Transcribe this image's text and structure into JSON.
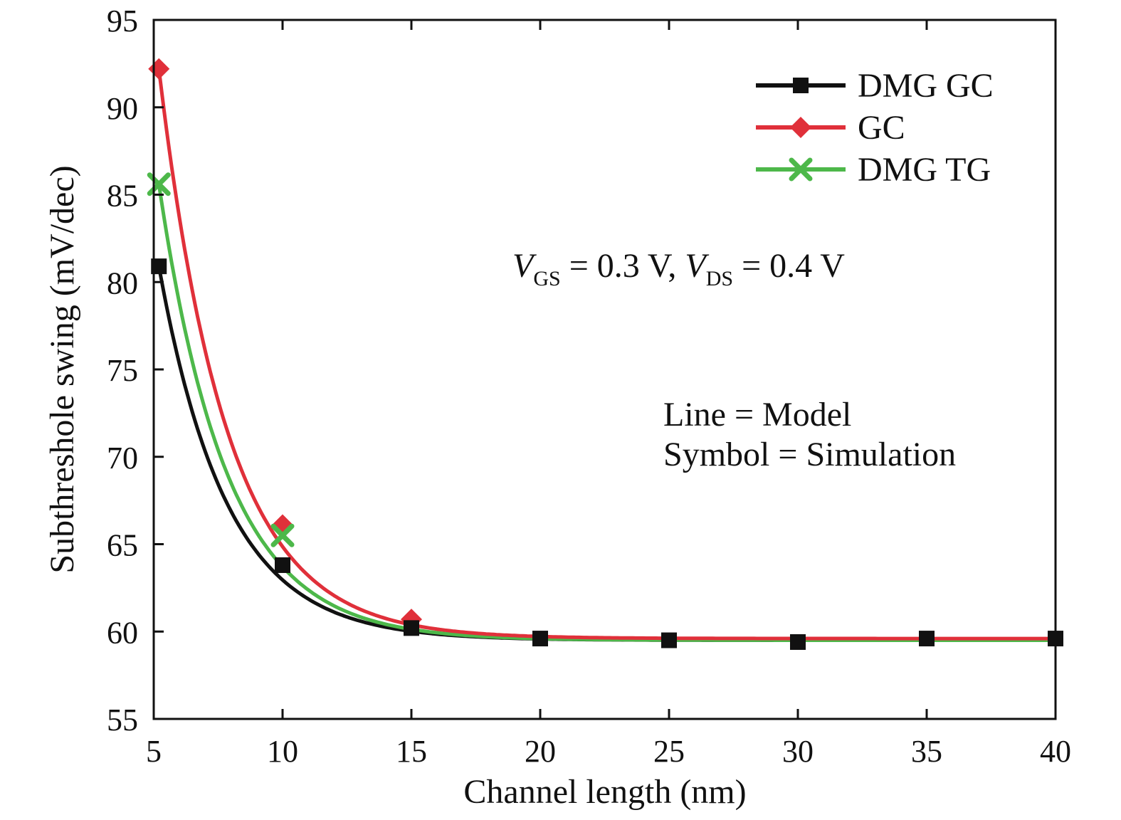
{
  "chart_data": {
    "type": "line",
    "xlabel": "Channel length (nm)",
    "ylabel": "Subthreshole swing (mV/dec)",
    "xlim": [
      5,
      40
    ],
    "ylim": [
      55,
      95
    ],
    "xticks": [
      "5",
      "10",
      "15",
      "20",
      "25",
      "30",
      "35",
      "40"
    ],
    "yticks": [
      "55",
      "60",
      "65",
      "70",
      "75",
      "80",
      "85",
      "90",
      "95"
    ],
    "grid": false,
    "legend_position": "top-right",
    "colors": {
      "DMG GC": "#111111",
      "GC": "#e0303a",
      "DMG TG": "#4db84a"
    },
    "series": [
      {
        "name": "DMG GC",
        "marker": "square",
        "x": [
          5.2,
          10,
          15,
          20,
          25,
          30,
          35,
          40
        ],
        "y": [
          80.9,
          63.8,
          60.2,
          59.6,
          59.5,
          59.4,
          59.6,
          59.6
        ]
      },
      {
        "name": "GC",
        "marker": "diamond",
        "x": [
          5.2,
          10,
          15
        ],
        "y": [
          92.2,
          66.1,
          60.7
        ]
      },
      {
        "name": "DMG TG",
        "marker": "cross",
        "x": [
          5.2,
          10
        ],
        "y": [
          85.6,
          65.5
        ]
      }
    ],
    "model_curves": {
      "DMG GC": {
        "floor": 59.5,
        "amplitude": 21.4,
        "decay": 0.38
      },
      "GC": {
        "floor": 59.6,
        "amplitude": 32.6,
        "decay": 0.38
      },
      "DMG TG": {
        "floor": 59.5,
        "amplitude": 26.1,
        "decay": 0.38
      }
    },
    "annotations": {
      "bias": {
        "v1": "V",
        "sub1": "GS",
        "mid": " = 0.3 V, ",
        "v2": "V",
        "sub2": "DS",
        "end": " = 0.4 V"
      },
      "line_note": "Line = Model",
      "symbol_note": "Symbol = Simulation"
    }
  }
}
